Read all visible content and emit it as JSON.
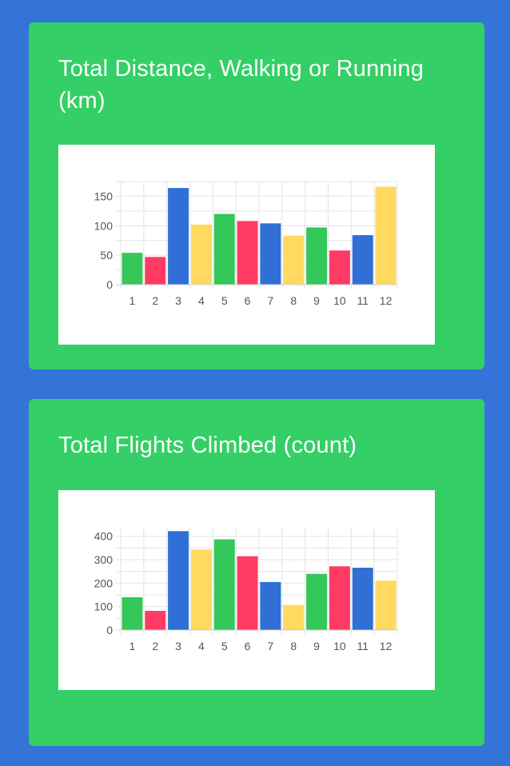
{
  "colors": {
    "background": "#3474d8",
    "card": "#34cf66",
    "green": "#34c759",
    "red": "#ff3b63",
    "blue": "#2f6fd6",
    "yellow": "#ffd960"
  },
  "chart_data": [
    {
      "type": "bar",
      "title": "Total Distance, Walking or Running (km)",
      "categories": [
        "1",
        "2",
        "3",
        "4",
        "5",
        "6",
        "7",
        "8",
        "9",
        "10",
        "11",
        "12"
      ],
      "values": [
        54,
        47,
        164,
        102,
        120,
        108,
        104,
        83,
        97,
        58,
        84,
        166
      ],
      "bar_colors": [
        "green",
        "red",
        "blue",
        "yellow",
        "green",
        "red",
        "blue",
        "yellow",
        "green",
        "red",
        "blue",
        "yellow"
      ],
      "yticks": [
        0,
        50,
        100,
        150
      ],
      "ylim": [
        0,
        175
      ],
      "grid": true
    },
    {
      "type": "bar",
      "title": "Total Flights Climbed (count)",
      "categories": [
        "1",
        "2",
        "3",
        "4",
        "5",
        "6",
        "7",
        "8",
        "9",
        "10",
        "11",
        "12"
      ],
      "values": [
        140,
        82,
        422,
        343,
        387,
        315,
        205,
        107,
        240,
        272,
        266,
        211
      ],
      "bar_colors": [
        "green",
        "red",
        "blue",
        "yellow",
        "green",
        "red",
        "blue",
        "yellow",
        "green",
        "red",
        "blue",
        "yellow"
      ],
      "yticks": [
        0,
        100,
        200,
        300,
        400
      ],
      "ylim": [
        0,
        440
      ],
      "grid": true
    }
  ]
}
